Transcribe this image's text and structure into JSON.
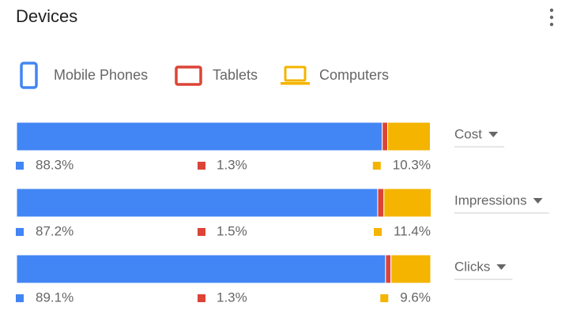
{
  "chart_data": {
    "type": "stacked-bar-100",
    "title": "Devices",
    "categories": [
      "Cost",
      "Impressions",
      "Clicks"
    ],
    "xlim": [
      0,
      100
    ],
    "series": [
      {
        "name": "Mobile Phones",
        "color": "#4285f4",
        "values": [
          88.3,
          87.2,
          89.1
        ],
        "value_labels": [
          "88.3%",
          "87.2%",
          "89.1%"
        ]
      },
      {
        "name": "Tablets",
        "color": "#db4437",
        "values": [
          1.3,
          1.5,
          1.3
        ],
        "value_labels": [
          "1.3%",
          "1.5%",
          "1.3%"
        ]
      },
      {
        "name": "Computers",
        "color": "#f4b400",
        "values": [
          10.3,
          11.4,
          9.6
        ],
        "value_labels": [
          "10.3%",
          "11.4%",
          "9.6%"
        ]
      }
    ]
  }
}
